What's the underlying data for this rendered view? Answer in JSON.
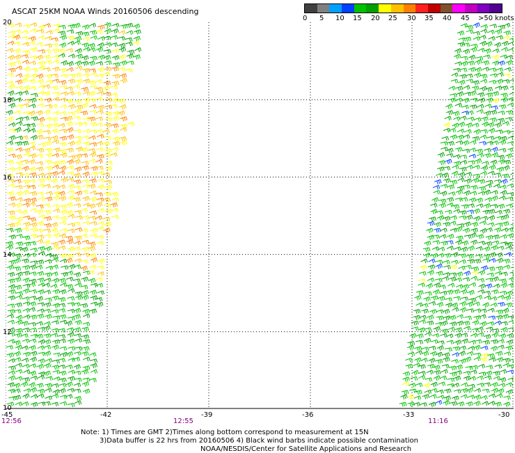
{
  "title": "ASCAT 25KM NOAA Winds 20160506 descending",
  "legend": {
    "colors": [
      "#404040",
      "#808080",
      "#00a0ff",
      "#0040ff",
      "#00c000",
      "#00a000",
      "#ffff00",
      "#ffc000",
      "#ff8000",
      "#ff2020",
      "#c00000",
      "#805030",
      "#ff00ff",
      "#c000c0",
      "#8000c0",
      "#500090"
    ],
    "labels": [
      "0",
      "5",
      "10",
      "15",
      "20",
      "25",
      "30",
      "35",
      "40",
      "45",
      ">50 knots"
    ]
  },
  "axes": {
    "lat_labels": [
      "20",
      "18",
      "16",
      "14",
      "12",
      "10"
    ],
    "lon_labels": [
      "-45",
      "-42",
      "-39",
      "-36",
      "-33",
      "-30"
    ]
  },
  "times": [
    "12:56",
    "12:55",
    "11:16"
  ],
  "notes": [
    "Note: 1) Times are GMT 2)Times along bottom correspond to measurement at 15N",
    "3)Data buffer is 22 hrs from 20160506 4) Black wind barbs indicate possible contamination",
    "NOAA/NESDIS/Center for Satellite Applications and Research"
  ],
  "swaths": [
    {
      "name": "west",
      "lon_range": [
        -45,
        -41
      ],
      "lat_range": [
        10,
        20
      ]
    },
    {
      "name": "east",
      "lon_range": [
        -33.5,
        -30
      ],
      "lat_range": [
        10,
        20
      ]
    }
  ]
}
